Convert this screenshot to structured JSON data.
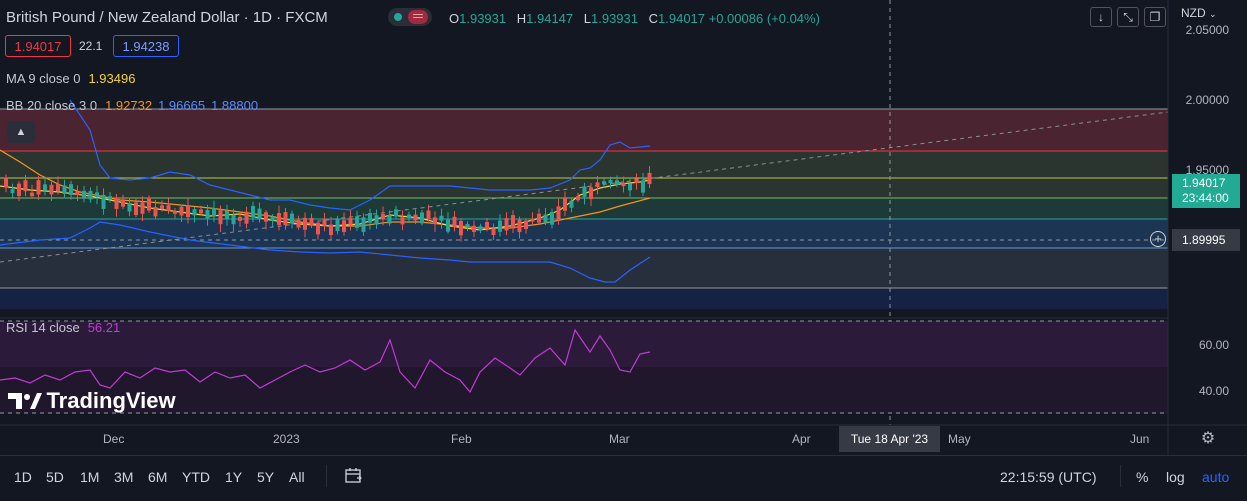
{
  "header": {
    "symbol_title": "British Pound / New Zealand Dollar · 1D · FXCM",
    "ohlc": [
      {
        "k": "O",
        "v": "1.93931"
      },
      {
        "k": "H",
        "v": "1.94147"
      },
      {
        "k": "L",
        "v": "1.93931"
      },
      {
        "k": "C",
        "v": "1.94017 +0.00086 (+0.04%)"
      }
    ],
    "sell_price": "1.94017",
    "spread": "22.1",
    "buy_price": "1.94238",
    "currency": "NZD"
  },
  "indicators": {
    "ma": {
      "name": "MA 9 close 0",
      "value": "1.93496"
    },
    "bb": {
      "name": "BB 20 close 3 0",
      "basis": "1.92732",
      "upper": "1.96665",
      "lower": "1.88800"
    },
    "rsi": {
      "name": "RSI 14 close",
      "value": "56.21"
    }
  },
  "price_axis": {
    "labels": [
      "2.05000",
      "2.00000",
      "1.95000",
      "1.90000"
    ],
    "current_price": "1.94017",
    "countdown": "23:44:00",
    "crosshair_price": "1.89995"
  },
  "rsi_axis": {
    "labels": [
      "60.00",
      "40.00"
    ]
  },
  "time_axis": {
    "labels": [
      "Dec",
      "2023",
      "Feb",
      "Mar",
      "Apr",
      "May",
      "Jun"
    ],
    "crosshair_date": "Tue 18 Apr '23"
  },
  "branding": "TradingView",
  "bottom_bar": {
    "ranges": [
      "1D",
      "5D",
      "1M",
      "3M",
      "6M",
      "YTD",
      "1Y",
      "5Y",
      "All"
    ],
    "clock": "22:15:59 (UTC)",
    "options": [
      "%",
      "log",
      "auto"
    ]
  },
  "colors": {
    "background": "#131722",
    "up": "#26a69a",
    "down": "#ef5350",
    "bb_band": "#2962ff",
    "ma": "#f5d33b",
    "rsi": "#c23bd4",
    "bb_basis": "#f7931a"
  },
  "icons": {
    "down_arrow": "chevron-down-icon",
    "fullscreen": "fullscreen-icon",
    "restore": "restore-icon",
    "calendar": "calendar-range-icon",
    "settings": "gear-icon",
    "plus": "plus-circle-icon"
  },
  "chart_data": {
    "type": "candlestick",
    "symbol": "GBPNZD",
    "timeframe": "1D",
    "y_axis": {
      "labels": [
        2.05,
        2.0,
        1.95,
        1.9
      ]
    },
    "bollinger": {
      "basis": 1.92732,
      "upper": 1.96665,
      "lower": 1.888
    },
    "ma": 1.93496,
    "last_close": 1.94017,
    "rsi": {
      "latest": 56.21,
      "levels": [
        60,
        40
      ]
    }
  }
}
